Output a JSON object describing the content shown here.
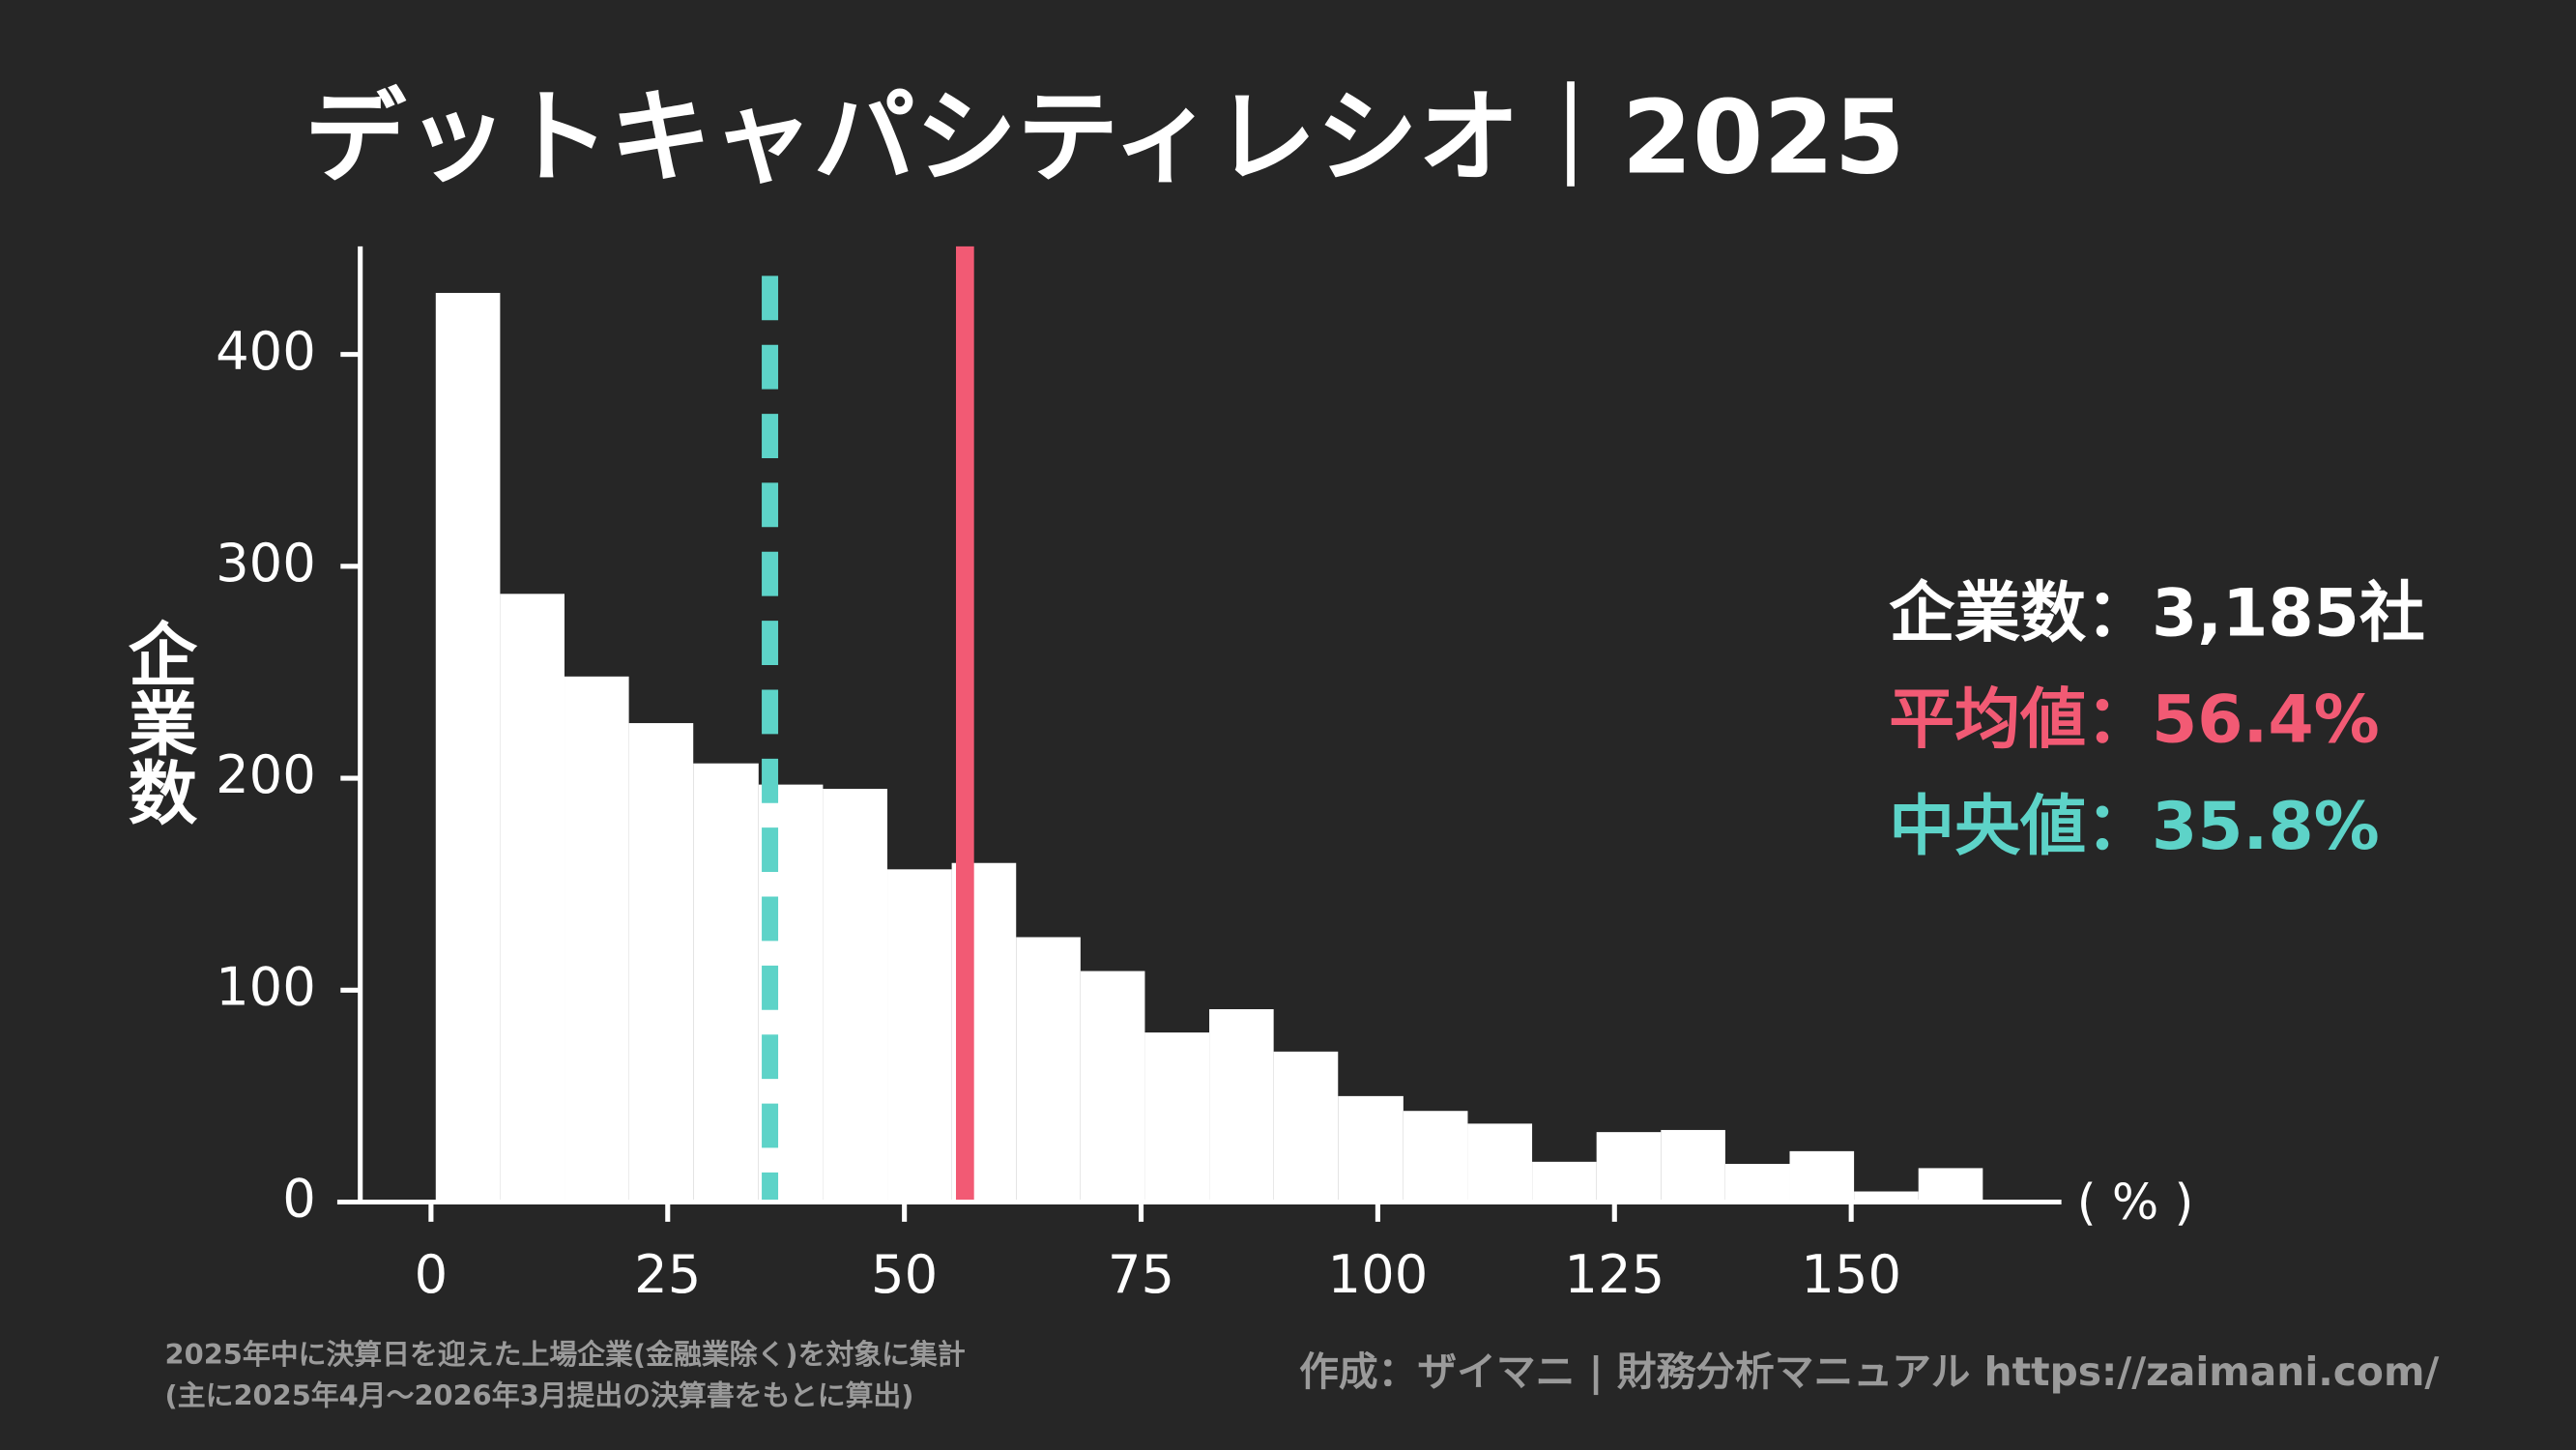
{
  "chart_data": {
    "type": "histogram",
    "title": "デットキャパシティレシオ｜2025",
    "y_label": "企業数",
    "x_unit_label": "( % )",
    "bins": [
      0.5,
      7.3,
      14.1,
      20.9,
      27.7,
      34.6,
      41.4,
      48.2,
      55.0,
      61.8,
      68.6,
      75.4,
      82.2,
      89.0,
      95.8,
      102.7,
      109.5,
      116.3,
      123.1,
      129.9,
      136.7,
      143.5,
      150.3,
      157.1,
      163.9
    ],
    "values": [
      429,
      287,
      248,
      226,
      207,
      197,
      195,
      157,
      160,
      125,
      109,
      80,
      91,
      71,
      50,
      43,
      37,
      19,
      33,
      34,
      18,
      24,
      5,
      16
    ],
    "color": "#ffffff",
    "xlim": [
      -9.9,
      172.2
    ],
    "ylim": [
      0,
      451
    ],
    "xticks": [
      0,
      25,
      50,
      75,
      100,
      125,
      150
    ],
    "yticks": [
      0,
      100,
      200,
      300,
      400
    ],
    "count_label": "企業数：3,185社",
    "mean": 56.4,
    "mean_label": "平均値：56.4%",
    "mean_color": "#f25a74",
    "median": 35.8,
    "median_label": "中央値：35.8%",
    "median_color": "#5dd3c8",
    "notes": [
      "2025年中に決算日を迎えた上場企業(金融業除く)を対象に集計",
      "(主に2025年4月〜2026年3月提出の決算書をもとに算出)"
    ],
    "credit": "作成：ザイマニ | 財務分析マニュアル https://zaimani.com/"
  }
}
